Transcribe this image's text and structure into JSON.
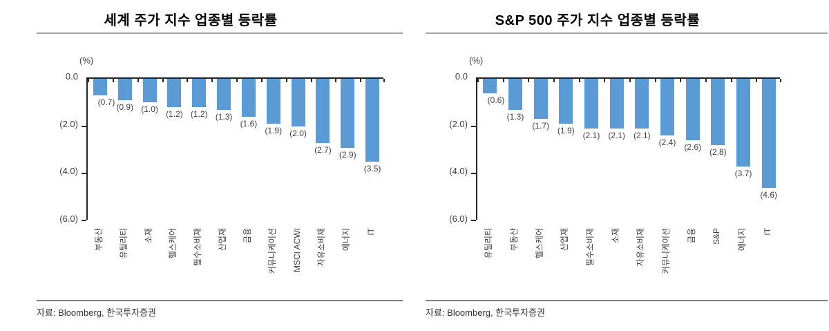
{
  "page": {
    "background": "#ffffff",
    "accent_bar_color": "#5B9BD5"
  },
  "chart_data": [
    {
      "type": "bar",
      "title": "세계 주가 지수 업종별 등락률",
      "unit_label": "(%)",
      "categories": [
        "부동산",
        "유틸리티",
        "소재",
        "헬스케어",
        "필수소비재",
        "산업재",
        "금융",
        "커뮤니케이션",
        "MSCI ACWI",
        "자유소비재",
        "에너지",
        "IT"
      ],
      "values": [
        -0.7,
        -0.9,
        -1.0,
        -1.2,
        -1.2,
        -1.3,
        -1.6,
        -1.9,
        -2.0,
        -2.7,
        -2.9,
        -3.5
      ],
      "value_labels": [
        "(0.7)",
        "(0.9)",
        "(1.0)",
        "(1.2)",
        "(1.2)",
        "(1.3)",
        "(1.6)",
        "(1.9)",
        "(2.0)",
        "(2.7)",
        "(2.9)",
        "(3.5)"
      ],
      "ylim": [
        -6,
        0
      ],
      "yticks": [
        {
          "value": 0,
          "label": "0.0"
        },
        {
          "value": -2,
          "label": "(2.0)"
        },
        {
          "value": -4,
          "label": "(4.0)"
        },
        {
          "value": -6,
          "label": "(6.0)"
        }
      ],
      "bar_color": "#5B9BD5",
      "grid": false,
      "legend": null,
      "source": "자료: Bloomberg,  한국투자증권"
    },
    {
      "type": "bar",
      "title": "S&P 500 주가 지수 업종별 등락률",
      "unit_label": "(%)",
      "categories": [
        "유틸리티",
        "부동산",
        "헬스케어",
        "산업재",
        "필수소비재",
        "소재",
        "자유소비재",
        "커뮤니케이션",
        "금융",
        "S&P",
        "에너지",
        "IT"
      ],
      "values": [
        -0.6,
        -1.3,
        -1.7,
        -1.9,
        -2.1,
        -2.1,
        -2.1,
        -2.4,
        -2.6,
        -2.8,
        -3.7,
        -4.6
      ],
      "value_labels": [
        "(0.6)",
        "(1.3)",
        "(1.7)",
        "(1.9)",
        "(2.1)",
        "(2.1)",
        "(2.1)",
        "(2.4)",
        "(2.6)",
        "(2.8)",
        "(3.7)",
        "(4.6)"
      ],
      "ylim": [
        -6,
        0
      ],
      "yticks": [
        {
          "value": 0,
          "label": "0.0"
        },
        {
          "value": -2,
          "label": "(2.0)"
        },
        {
          "value": -4,
          "label": "(4.0)"
        },
        {
          "value": -6,
          "label": "(6.0)"
        }
      ],
      "bar_color": "#5B9BD5",
      "grid": false,
      "legend": null,
      "source": "자료: Bloomberg,  한국투자증권"
    }
  ]
}
